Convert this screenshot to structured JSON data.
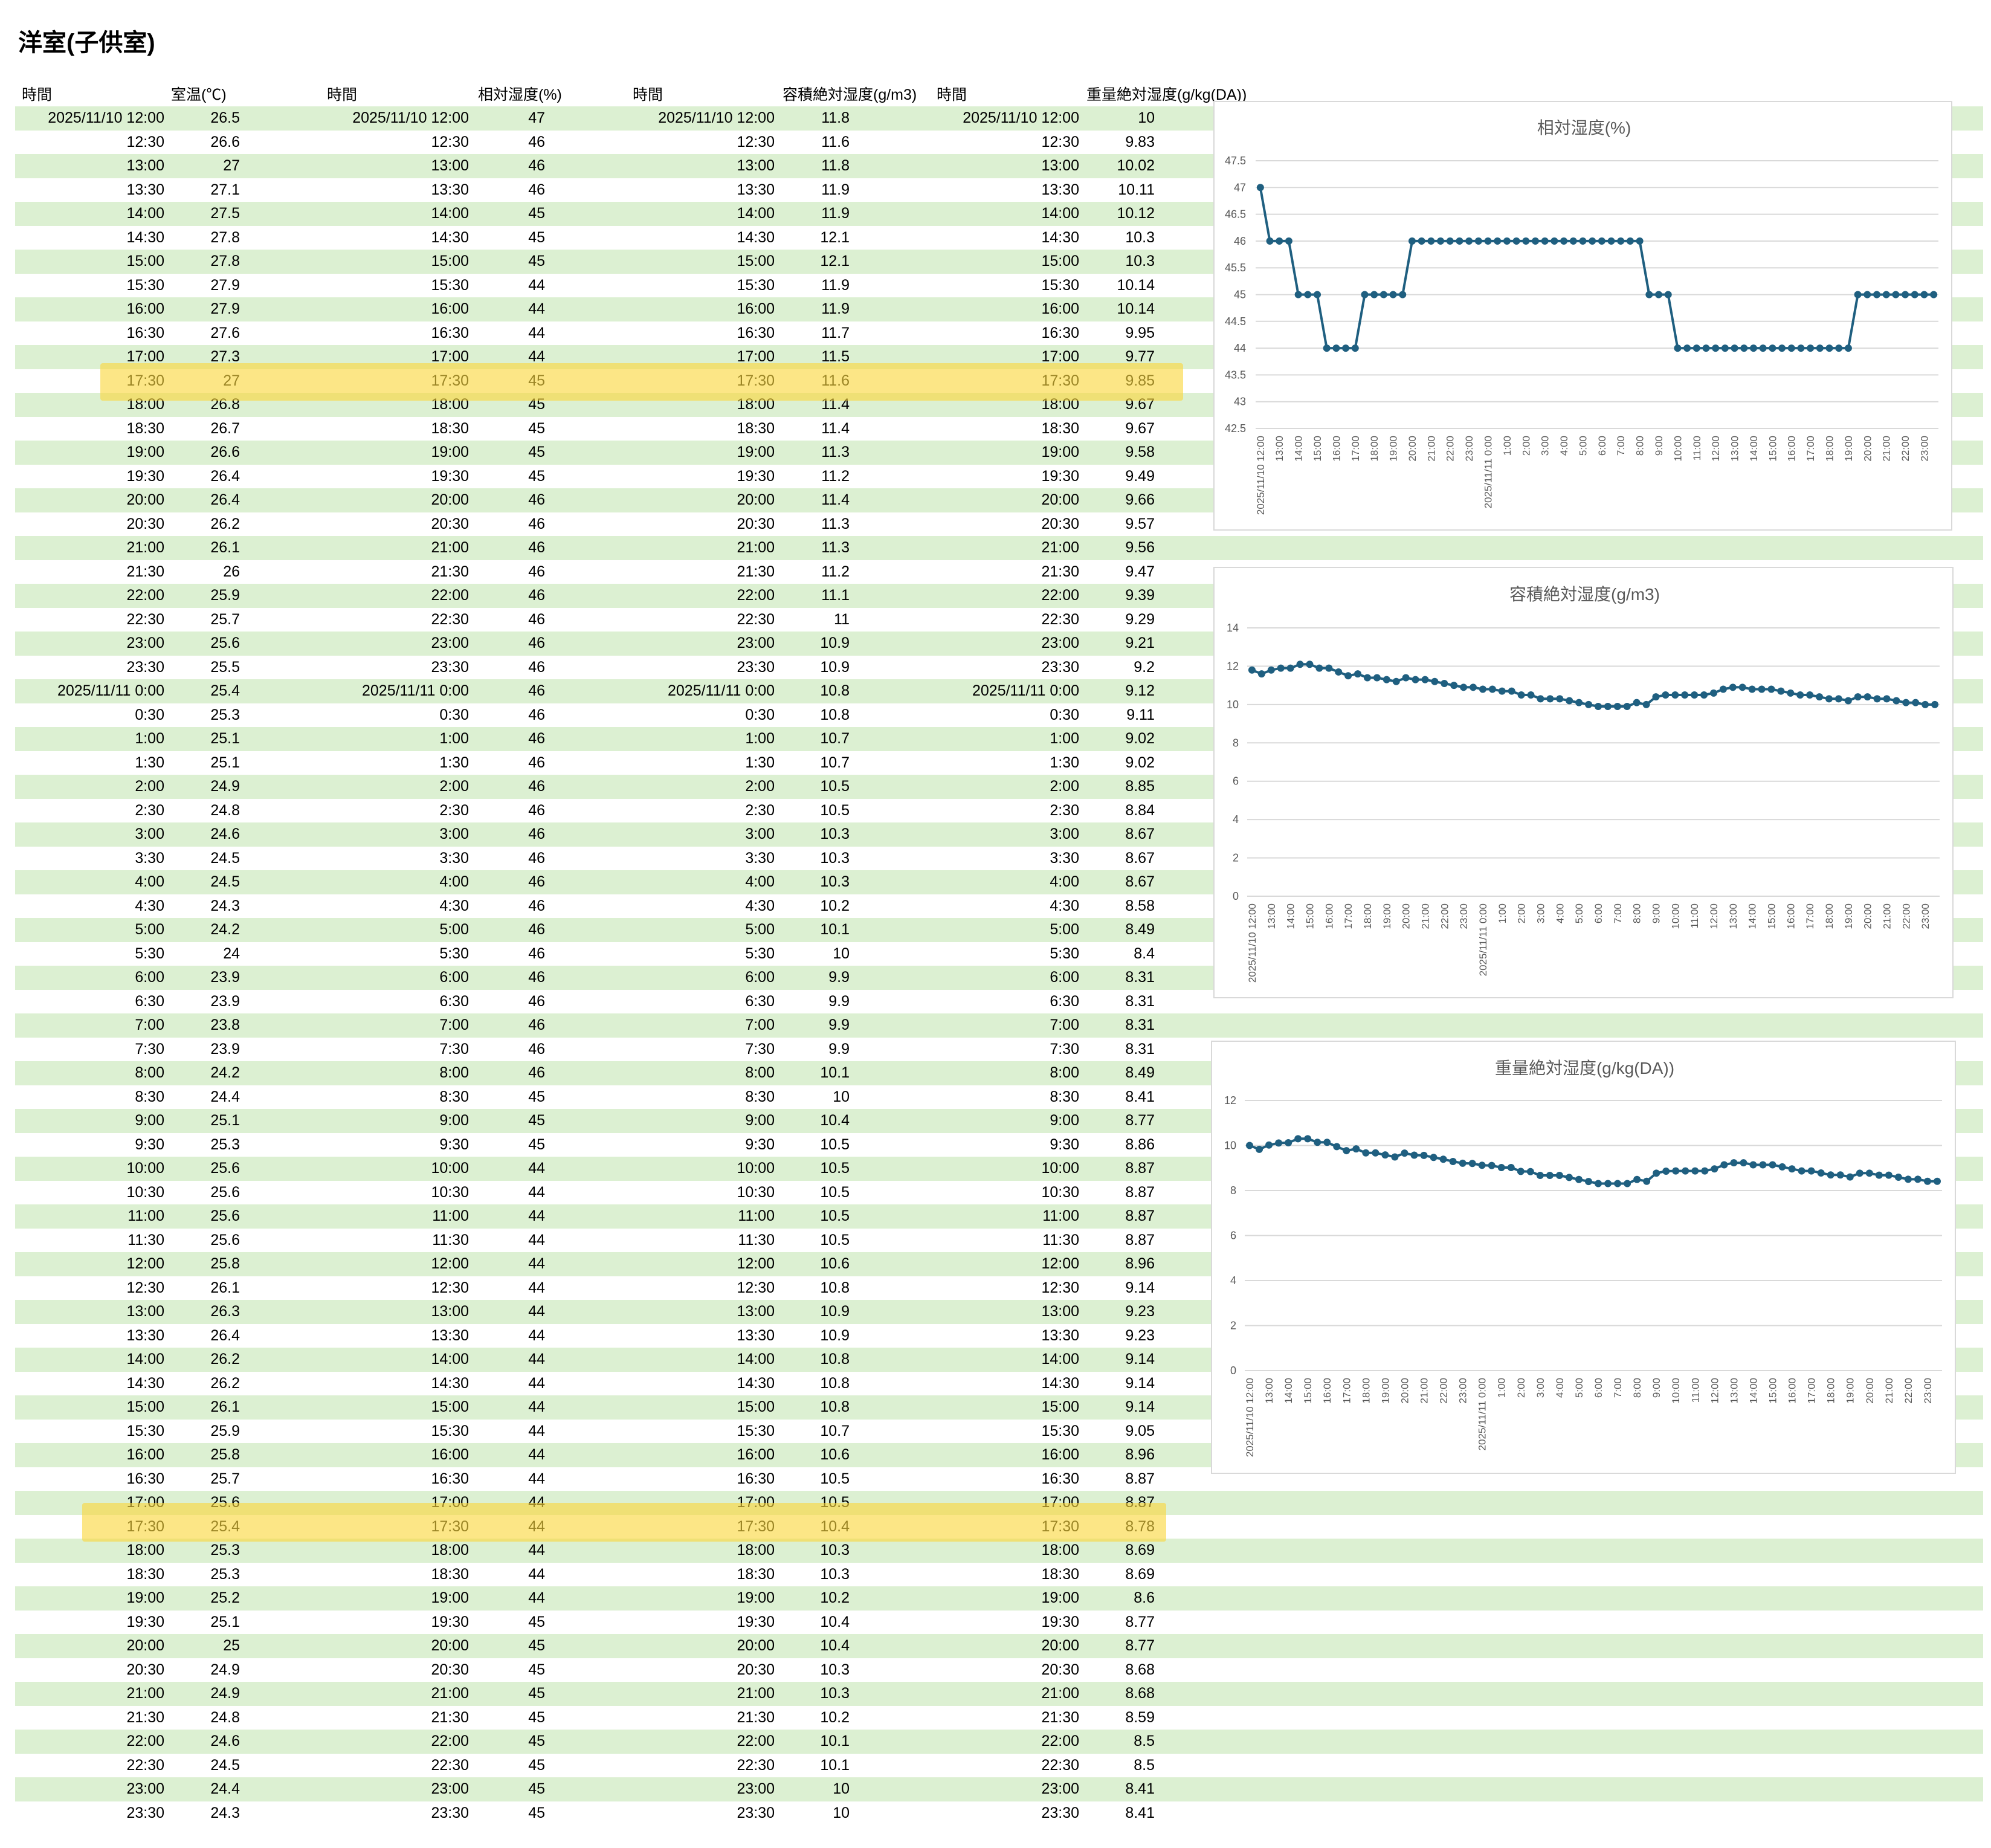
{
  "sheet": {
    "title": "洋室(子供室)"
  },
  "table": {
    "headers": [
      "時間",
      "室温(℃)",
      "時間",
      "相対湿度(%)",
      "時間",
      "容積絶対湿度(g/m3)",
      "時間",
      "重量絶対湿度(g/kg(DA))"
    ],
    "columns": [
      "time",
      "temperature_c",
      "relative_humidity_pct",
      "volumetric_abs_humidity_g_m3",
      "mass_abs_humidity_g_kgDA"
    ],
    "highlighted_rows": [
      "2025/11/10 17:30",
      "2025/11/11 17:30"
    ],
    "rows": [
      [
        "2025/11/10 12:00",
        "26.5",
        "47",
        "11.8",
        "10"
      ],
      [
        "12:30",
        "26.6",
        "46",
        "11.6",
        "9.83"
      ],
      [
        "13:00",
        "27",
        "46",
        "11.8",
        "10.02"
      ],
      [
        "13:30",
        "27.1",
        "46",
        "11.9",
        "10.11"
      ],
      [
        "14:00",
        "27.5",
        "45",
        "11.9",
        "10.12"
      ],
      [
        "14:30",
        "27.8",
        "45",
        "12.1",
        "10.3"
      ],
      [
        "15:00",
        "27.8",
        "45",
        "12.1",
        "10.3"
      ],
      [
        "15:30",
        "27.9",
        "44",
        "11.9",
        "10.14"
      ],
      [
        "16:00",
        "27.9",
        "44",
        "11.9",
        "10.14"
      ],
      [
        "16:30",
        "27.6",
        "44",
        "11.7",
        "9.95"
      ],
      [
        "17:00",
        "27.3",
        "44",
        "11.5",
        "9.77"
      ],
      [
        "17:30",
        "27",
        "45",
        "11.6",
        "9.85"
      ],
      [
        "18:00",
        "26.8",
        "45",
        "11.4",
        "9.67"
      ],
      [
        "18:30",
        "26.7",
        "45",
        "11.4",
        "9.67"
      ],
      [
        "19:00",
        "26.6",
        "45",
        "11.3",
        "9.58"
      ],
      [
        "19:30",
        "26.4",
        "45",
        "11.2",
        "9.49"
      ],
      [
        "20:00",
        "26.4",
        "46",
        "11.4",
        "9.66"
      ],
      [
        "20:30",
        "26.2",
        "46",
        "11.3",
        "9.57"
      ],
      [
        "21:00",
        "26.1",
        "46",
        "11.3",
        "9.56"
      ],
      [
        "21:30",
        "26",
        "46",
        "11.2",
        "9.47"
      ],
      [
        "22:00",
        "25.9",
        "46",
        "11.1",
        "9.39"
      ],
      [
        "22:30",
        "25.7",
        "46",
        "11",
        "9.29"
      ],
      [
        "23:00",
        "25.6",
        "46",
        "10.9",
        "9.21"
      ],
      [
        "23:30",
        "25.5",
        "46",
        "10.9",
        "9.2"
      ],
      [
        "2025/11/11 0:00",
        "25.4",
        "46",
        "10.8",
        "9.12"
      ],
      [
        "0:30",
        "25.3",
        "46",
        "10.8",
        "9.11"
      ],
      [
        "1:00",
        "25.1",
        "46",
        "10.7",
        "9.02"
      ],
      [
        "1:30",
        "25.1",
        "46",
        "10.7",
        "9.02"
      ],
      [
        "2:00",
        "24.9",
        "46",
        "10.5",
        "8.85"
      ],
      [
        "2:30",
        "24.8",
        "46",
        "10.5",
        "8.84"
      ],
      [
        "3:00",
        "24.6",
        "46",
        "10.3",
        "8.67"
      ],
      [
        "3:30",
        "24.5",
        "46",
        "10.3",
        "8.67"
      ],
      [
        "4:00",
        "24.5",
        "46",
        "10.3",
        "8.67"
      ],
      [
        "4:30",
        "24.3",
        "46",
        "10.2",
        "8.58"
      ],
      [
        "5:00",
        "24.2",
        "46",
        "10.1",
        "8.49"
      ],
      [
        "5:30",
        "24",
        "46",
        "10",
        "8.4"
      ],
      [
        "6:00",
        "23.9",
        "46",
        "9.9",
        "8.31"
      ],
      [
        "6:30",
        "23.9",
        "46",
        "9.9",
        "8.31"
      ],
      [
        "7:00",
        "23.8",
        "46",
        "9.9",
        "8.31"
      ],
      [
        "7:30",
        "23.9",
        "46",
        "9.9",
        "8.31"
      ],
      [
        "8:00",
        "24.2",
        "46",
        "10.1",
        "8.49"
      ],
      [
        "8:30",
        "24.4",
        "45",
        "10",
        "8.41"
      ],
      [
        "9:00",
        "25.1",
        "45",
        "10.4",
        "8.77"
      ],
      [
        "9:30",
        "25.3",
        "45",
        "10.5",
        "8.86"
      ],
      [
        "10:00",
        "25.6",
        "44",
        "10.5",
        "8.87"
      ],
      [
        "10:30",
        "25.6",
        "44",
        "10.5",
        "8.87"
      ],
      [
        "11:00",
        "25.6",
        "44",
        "10.5",
        "8.87"
      ],
      [
        "11:30",
        "25.6",
        "44",
        "10.5",
        "8.87"
      ],
      [
        "12:00",
        "25.8",
        "44",
        "10.6",
        "8.96"
      ],
      [
        "12:30",
        "26.1",
        "44",
        "10.8",
        "9.14"
      ],
      [
        "13:00",
        "26.3",
        "44",
        "10.9",
        "9.23"
      ],
      [
        "13:30",
        "26.4",
        "44",
        "10.9",
        "9.23"
      ],
      [
        "14:00",
        "26.2",
        "44",
        "10.8",
        "9.14"
      ],
      [
        "14:30",
        "26.2",
        "44",
        "10.8",
        "9.14"
      ],
      [
        "15:00",
        "26.1",
        "44",
        "10.8",
        "9.14"
      ],
      [
        "15:30",
        "25.9",
        "44",
        "10.7",
        "9.05"
      ],
      [
        "16:00",
        "25.8",
        "44",
        "10.6",
        "8.96"
      ],
      [
        "16:30",
        "25.7",
        "44",
        "10.5",
        "8.87"
      ],
      [
        "17:00",
        "25.6",
        "44",
        "10.5",
        "8.87"
      ],
      [
        "17:30",
        "25.4",
        "44",
        "10.4",
        "8.78"
      ],
      [
        "18:00",
        "25.3",
        "44",
        "10.3",
        "8.69"
      ],
      [
        "18:30",
        "25.3",
        "44",
        "10.3",
        "8.69"
      ],
      [
        "19:00",
        "25.2",
        "44",
        "10.2",
        "8.6"
      ],
      [
        "19:30",
        "25.1",
        "45",
        "10.4",
        "8.77"
      ],
      [
        "20:00",
        "25",
        "45",
        "10.4",
        "8.77"
      ],
      [
        "20:30",
        "24.9",
        "45",
        "10.3",
        "8.68"
      ],
      [
        "21:00",
        "24.9",
        "45",
        "10.3",
        "8.68"
      ],
      [
        "21:30",
        "24.8",
        "45",
        "10.2",
        "8.59"
      ],
      [
        "22:00",
        "24.6",
        "45",
        "10.1",
        "8.5"
      ],
      [
        "22:30",
        "24.5",
        "45",
        "10.1",
        "8.5"
      ],
      [
        "23:00",
        "24.4",
        "45",
        "10",
        "8.41"
      ],
      [
        "23:30",
        "24.3",
        "45",
        "10",
        "8.41"
      ]
    ]
  },
  "chart_data": [
    {
      "type": "line",
      "title": "相対湿度(%)",
      "ylim": [
        42.5,
        47.5
      ],
      "ystep": 0.5,
      "grid": true,
      "legend": "none",
      "line_color": "#1f5f80",
      "x_labels": [
        "2025/11/10 12:00",
        "13:00",
        "14:00",
        "15:00",
        "16:00",
        "17:00",
        "18:00",
        "19:00",
        "20:00",
        "21:00",
        "22:00",
        "23:00",
        "2025/11/11 0:00",
        "1:00",
        "2:00",
        "3:00",
        "4:00",
        "5:00",
        "6:00",
        "7:00",
        "8:00",
        "9:00",
        "10:00",
        "11:00",
        "12:00",
        "13:00",
        "14:00",
        "15:00",
        "16:00",
        "17:00",
        "18:00",
        "19:00",
        "20:00",
        "21:00",
        "22:00",
        "23:00"
      ],
      "x_label_interval": 2,
      "values": [
        47,
        46,
        46,
        46,
        45,
        45,
        45,
        44,
        44,
        44,
        44,
        45,
        45,
        45,
        45,
        45,
        46,
        46,
        46,
        46,
        46,
        46,
        46,
        46,
        46,
        46,
        46,
        46,
        46,
        46,
        46,
        46,
        46,
        46,
        46,
        46,
        46,
        46,
        46,
        46,
        46,
        45,
        45,
        45,
        44,
        44,
        44,
        44,
        44,
        44,
        44,
        44,
        44,
        44,
        44,
        44,
        44,
        44,
        44,
        44,
        44,
        44,
        44,
        45,
        45,
        45,
        45,
        45,
        45,
        45,
        45,
        45
      ]
    },
    {
      "type": "line",
      "title": "容積絶対湿度(g/m3)",
      "ylim": [
        0,
        14
      ],
      "ystep": 2,
      "grid": true,
      "legend": "none",
      "line_color": "#1f5f80",
      "x_labels": [
        "2025/11/10 12:00",
        "13:00",
        "14:00",
        "15:00",
        "16:00",
        "17:00",
        "18:00",
        "19:00",
        "20:00",
        "21:00",
        "22:00",
        "23:00",
        "2025/11/11 0:00",
        "1:00",
        "2:00",
        "3:00",
        "4:00",
        "5:00",
        "6:00",
        "7:00",
        "8:00",
        "9:00",
        "10:00",
        "11:00",
        "12:00",
        "13:00",
        "14:00",
        "15:00",
        "16:00",
        "17:00",
        "18:00",
        "19:00",
        "20:00",
        "21:00",
        "22:00",
        "23:00"
      ],
      "x_label_interval": 2,
      "values": [
        11.8,
        11.6,
        11.8,
        11.9,
        11.9,
        12.1,
        12.1,
        11.9,
        11.9,
        11.7,
        11.5,
        11.6,
        11.4,
        11.4,
        11.3,
        11.2,
        11.4,
        11.3,
        11.3,
        11.2,
        11.1,
        11,
        10.9,
        10.9,
        10.8,
        10.8,
        10.7,
        10.7,
        10.5,
        10.5,
        10.3,
        10.3,
        10.3,
        10.2,
        10.1,
        10,
        9.9,
        9.9,
        9.9,
        9.9,
        10.1,
        10,
        10.4,
        10.5,
        10.5,
        10.5,
        10.5,
        10.5,
        10.6,
        10.8,
        10.9,
        10.9,
        10.8,
        10.8,
        10.8,
        10.7,
        10.6,
        10.5,
        10.5,
        10.4,
        10.3,
        10.3,
        10.2,
        10.4,
        10.4,
        10.3,
        10.3,
        10.2,
        10.1,
        10.1,
        10,
        10
      ]
    },
    {
      "type": "line",
      "title": "重量絶対湿度(g/kg(DA))",
      "ylim": [
        0,
        12
      ],
      "ystep": 2,
      "grid": true,
      "legend": "none",
      "line_color": "#1f5f80",
      "x_labels": [
        "2025/11/10 12:00",
        "13:00",
        "14:00",
        "15:00",
        "16:00",
        "17:00",
        "18:00",
        "19:00",
        "20:00",
        "21:00",
        "22:00",
        "23:00",
        "2025/11/11 0:00",
        "1:00",
        "2:00",
        "3:00",
        "4:00",
        "5:00",
        "6:00",
        "7:00",
        "8:00",
        "9:00",
        "10:00",
        "11:00",
        "12:00",
        "13:00",
        "14:00",
        "15:00",
        "16:00",
        "17:00",
        "18:00",
        "19:00",
        "20:00",
        "21:00",
        "22:00",
        "23:00"
      ],
      "x_label_interval": 2,
      "values": [
        10,
        9.83,
        10.02,
        10.11,
        10.12,
        10.3,
        10.3,
        10.14,
        10.14,
        9.95,
        9.77,
        9.85,
        9.67,
        9.67,
        9.58,
        9.49,
        9.66,
        9.57,
        9.56,
        9.47,
        9.39,
        9.29,
        9.21,
        9.2,
        9.12,
        9.11,
        9.02,
        9.02,
        8.85,
        8.84,
        8.67,
        8.67,
        8.67,
        8.58,
        8.49,
        8.4,
        8.31,
        8.31,
        8.31,
        8.31,
        8.49,
        8.41,
        8.77,
        8.86,
        8.87,
        8.87,
        8.87,
        8.87,
        8.96,
        9.14,
        9.23,
        9.23,
        9.14,
        9.14,
        9.14,
        9.05,
        8.96,
        8.87,
        8.87,
        8.78,
        8.69,
        8.69,
        8.6,
        8.77,
        8.77,
        8.68,
        8.68,
        8.59,
        8.5,
        8.5,
        8.41,
        8.41
      ]
    }
  ]
}
